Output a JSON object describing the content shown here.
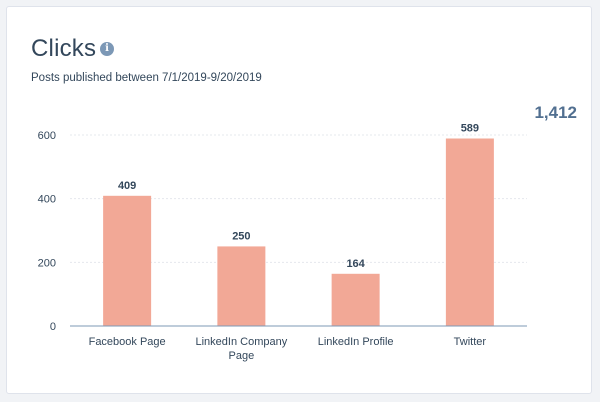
{
  "header": {
    "title": "Clicks",
    "subtitle": "Posts published between 7/1/2019-9/20/2019",
    "total": "1,412",
    "info_icon": "info-icon"
  },
  "colors": {
    "bar": "#f2a896",
    "axis": "#7c98b6",
    "grid": "#e5e8ed",
    "text": "#33475b",
    "total": "#516f90"
  },
  "chart_data": {
    "type": "bar",
    "title": "Clicks",
    "xlabel": "",
    "ylabel": "",
    "ylim": [
      0,
      600
    ],
    "yticks": [
      0,
      200,
      400,
      600
    ],
    "categories": [
      [
        "Facebook Page"
      ],
      [
        "LinkedIn Company",
        "Page"
      ],
      [
        "LinkedIn Profile"
      ],
      [
        "Twitter"
      ]
    ],
    "values": [
      409,
      250,
      164,
      589
    ],
    "grid": true,
    "data_labels": true
  }
}
